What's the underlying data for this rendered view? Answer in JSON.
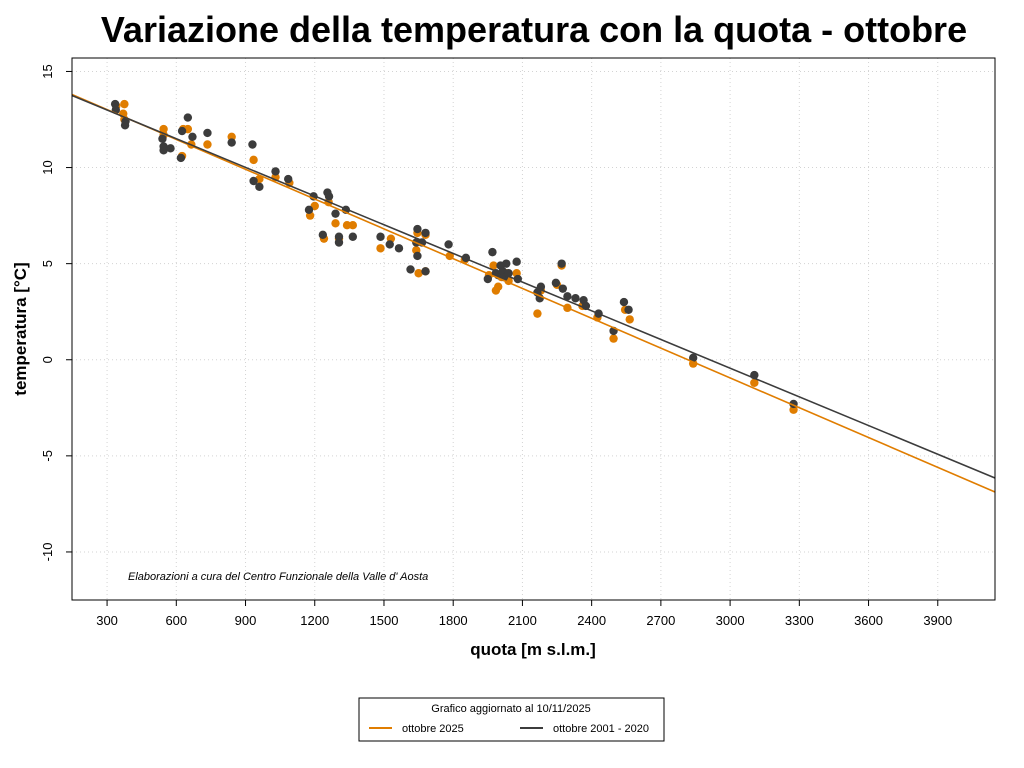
{
  "chart_data": {
    "type": "scatter",
    "title": "Variazione della temperatura con la quota -  ottobre",
    "xlabel": "quota [m s.l.m.]",
    "ylabel": "temperatura [°C]",
    "xlim": [
      148,
      4148
    ],
    "ylim": [
      -12.5,
      15.7
    ],
    "xticks": [
      300,
      600,
      900,
      1200,
      1500,
      1800,
      2100,
      2400,
      2700,
      3000,
      3300,
      3600,
      3900
    ],
    "yticks": [
      -10,
      -5,
      0,
      5,
      10,
      15
    ],
    "grid": true,
    "credit": "Elaborazioni a cura del Centro Funzionale della Valle d' Aosta",
    "legend": {
      "title": "Grafico aggiornato al 10/11/2025",
      "placement": "bottom-center",
      "entries": [
        "ottobre 2025",
        "ottobre 2001 - 2020"
      ]
    },
    "series": [
      {
        "name": "ottobre 2025",
        "color": "#e07d00",
        "regression": {
          "x": [
            148,
            4148
          ],
          "y": [
            13.8,
            -6.88
          ]
        },
        "points": [
          [
            340,
            13.2
          ],
          [
            375,
            13.3
          ],
          [
            370,
            12.8
          ],
          [
            375,
            12.5
          ],
          [
            545,
            12.0
          ],
          [
            545,
            11.7
          ],
          [
            625,
            10.6
          ],
          [
            630,
            12.0
          ],
          [
            650,
            12.0
          ],
          [
            665,
            11.2
          ],
          [
            735,
            11.2
          ],
          [
            840,
            11.6
          ],
          [
            935,
            10.4
          ],
          [
            960,
            9.4
          ],
          [
            1030,
            9.5
          ],
          [
            1090,
            9.2
          ],
          [
            1180,
            7.5
          ],
          [
            1200,
            8.0
          ],
          [
            1240,
            6.3
          ],
          [
            1260,
            8.2
          ],
          [
            1290,
            7.1
          ],
          [
            1305,
            6.3
          ],
          [
            1340,
            7.0
          ],
          [
            1365,
            7.0
          ],
          [
            1485,
            5.8
          ],
          [
            1530,
            6.3
          ],
          [
            1640,
            5.7
          ],
          [
            1645,
            6.6
          ],
          [
            1650,
            4.5
          ],
          [
            1680,
            4.6
          ],
          [
            1680,
            6.5
          ],
          [
            1785,
            5.4
          ],
          [
            1850,
            5.2
          ],
          [
            1955,
            4.4
          ],
          [
            1975,
            4.9
          ],
          [
            1985,
            3.6
          ],
          [
            1995,
            3.8
          ],
          [
            2010,
            4.3
          ],
          [
            2030,
            4.5
          ],
          [
            2040,
            4.1
          ],
          [
            2075,
            4.5
          ],
          [
            2165,
            2.4
          ],
          [
            2180,
            3.6
          ],
          [
            2250,
            3.9
          ],
          [
            2270,
            4.9
          ],
          [
            2295,
            2.7
          ],
          [
            2360,
            2.8
          ],
          [
            2425,
            2.2
          ],
          [
            2495,
            1.1
          ],
          [
            2545,
            2.6
          ],
          [
            2565,
            2.1
          ],
          [
            2840,
            -0.2
          ],
          [
            3105,
            -1.2
          ],
          [
            3275,
            -2.6
          ]
        ]
      },
      {
        "name": "ottobre 2001 - 2020",
        "color": "#3c3c3c",
        "regression": {
          "x": [
            148,
            4148
          ],
          "y": [
            13.75,
            -6.15
          ]
        },
        "points": [
          [
            335,
            13.3
          ],
          [
            338,
            13.0
          ],
          [
            380,
            12.4
          ],
          [
            378,
            12.2
          ],
          [
            540,
            11.5
          ],
          [
            545,
            11.1
          ],
          [
            545,
            10.9
          ],
          [
            575,
            11.0
          ],
          [
            620,
            10.5
          ],
          [
            625,
            11.9
          ],
          [
            650,
            12.6
          ],
          [
            670,
            11.6
          ],
          [
            735,
            11.8
          ],
          [
            840,
            11.3
          ],
          [
            930,
            11.2
          ],
          [
            935,
            9.3
          ],
          [
            960,
            9.0
          ],
          [
            1030,
            9.8
          ],
          [
            1085,
            9.4
          ],
          [
            1175,
            7.8
          ],
          [
            1195,
            8.5
          ],
          [
            1235,
            6.5
          ],
          [
            1255,
            8.7
          ],
          [
            1262,
            8.5
          ],
          [
            1290,
            7.6
          ],
          [
            1305,
            6.1
          ],
          [
            1305,
            6.4
          ],
          [
            1335,
            7.8
          ],
          [
            1365,
            6.4
          ],
          [
            1485,
            6.4
          ],
          [
            1525,
            6.0
          ],
          [
            1565,
            5.8
          ],
          [
            1615,
            4.7
          ],
          [
            1640,
            6.1
          ],
          [
            1645,
            5.4
          ],
          [
            1645,
            6.8
          ],
          [
            1665,
            6.1
          ],
          [
            1680,
            6.6
          ],
          [
            1680,
            4.6
          ],
          [
            1780,
            6.0
          ],
          [
            1855,
            5.3
          ],
          [
            1950,
            4.2
          ],
          [
            1970,
            5.6
          ],
          [
            1985,
            4.5
          ],
          [
            1995,
            4.4
          ],
          [
            2005,
            4.9
          ],
          [
            2015,
            4.6
          ],
          [
            2020,
            4.3
          ],
          [
            2030,
            5.0
          ],
          [
            2040,
            4.5
          ],
          [
            2075,
            5.1
          ],
          [
            2080,
            4.2
          ],
          [
            2165,
            3.5
          ],
          [
            2175,
            3.2
          ],
          [
            2180,
            3.8
          ],
          [
            2245,
            4.0
          ],
          [
            2270,
            5.0
          ],
          [
            2275,
            3.7
          ],
          [
            2295,
            3.3
          ],
          [
            2330,
            3.2
          ],
          [
            2365,
            3.1
          ],
          [
            2375,
            2.8
          ],
          [
            2430,
            2.4
          ],
          [
            2495,
            1.5
          ],
          [
            2540,
            3.0
          ],
          [
            2560,
            2.6
          ],
          [
            2840,
            0.1
          ],
          [
            3105,
            -0.8
          ],
          [
            3275,
            -2.3
          ]
        ]
      }
    ]
  }
}
